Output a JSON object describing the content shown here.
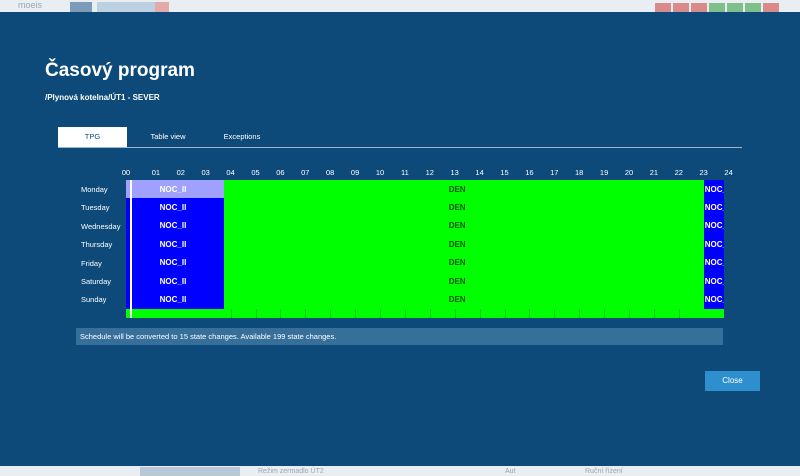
{
  "background_app": {
    "logo_text": "moeis",
    "bottom_texts": [
      "Režim zermadlo ÚT2",
      "Aut",
      "Ruční řízení"
    ]
  },
  "dialog": {
    "title": "Časový program",
    "subtitle": "/Plynová kotelna/ÚT1 - SEVER",
    "tabs": [
      {
        "label": "TPG",
        "active": true
      },
      {
        "label": "Table view",
        "active": false
      },
      {
        "label": "Exceptions",
        "active": false
      }
    ],
    "hours": [
      "00",
      "01",
      "02",
      "03",
      "04",
      "05",
      "06",
      "07",
      "08",
      "09",
      "10",
      "11",
      "12",
      "13",
      "14",
      "15",
      "16",
      "17",
      "18",
      "19",
      "20",
      "21",
      "22",
      "23",
      "24"
    ],
    "days": [
      "Monday",
      "Tuesday",
      "Wednesday",
      "Thursday",
      "Friday",
      "Saturday",
      "Sunday"
    ],
    "info_text": "Schedule will be converted to 15 state changes. Available 199 state changes.",
    "close_label": "Close"
  },
  "schedule": {
    "states": {
      "NOC_II": {
        "label": "NOC_II",
        "color": "#0000ff",
        "selected_color": "#a0a0ff"
      },
      "DEN": {
        "label": "DEN",
        "color": "#00ff00"
      },
      "NOC_tail": {
        "label": "NOC_",
        "color": "#0000ff"
      }
    },
    "segments_per_day": [
      {
        "state": "NOC_II",
        "start_hour": 0,
        "end_hour": 3.75
      },
      {
        "state": "DEN",
        "start_hour": 3.75,
        "end_hour": 23
      },
      {
        "state": "NOC_tail",
        "start_hour": 23,
        "end_hour": 24
      }
    ],
    "selected_day": "Monday"
  }
}
